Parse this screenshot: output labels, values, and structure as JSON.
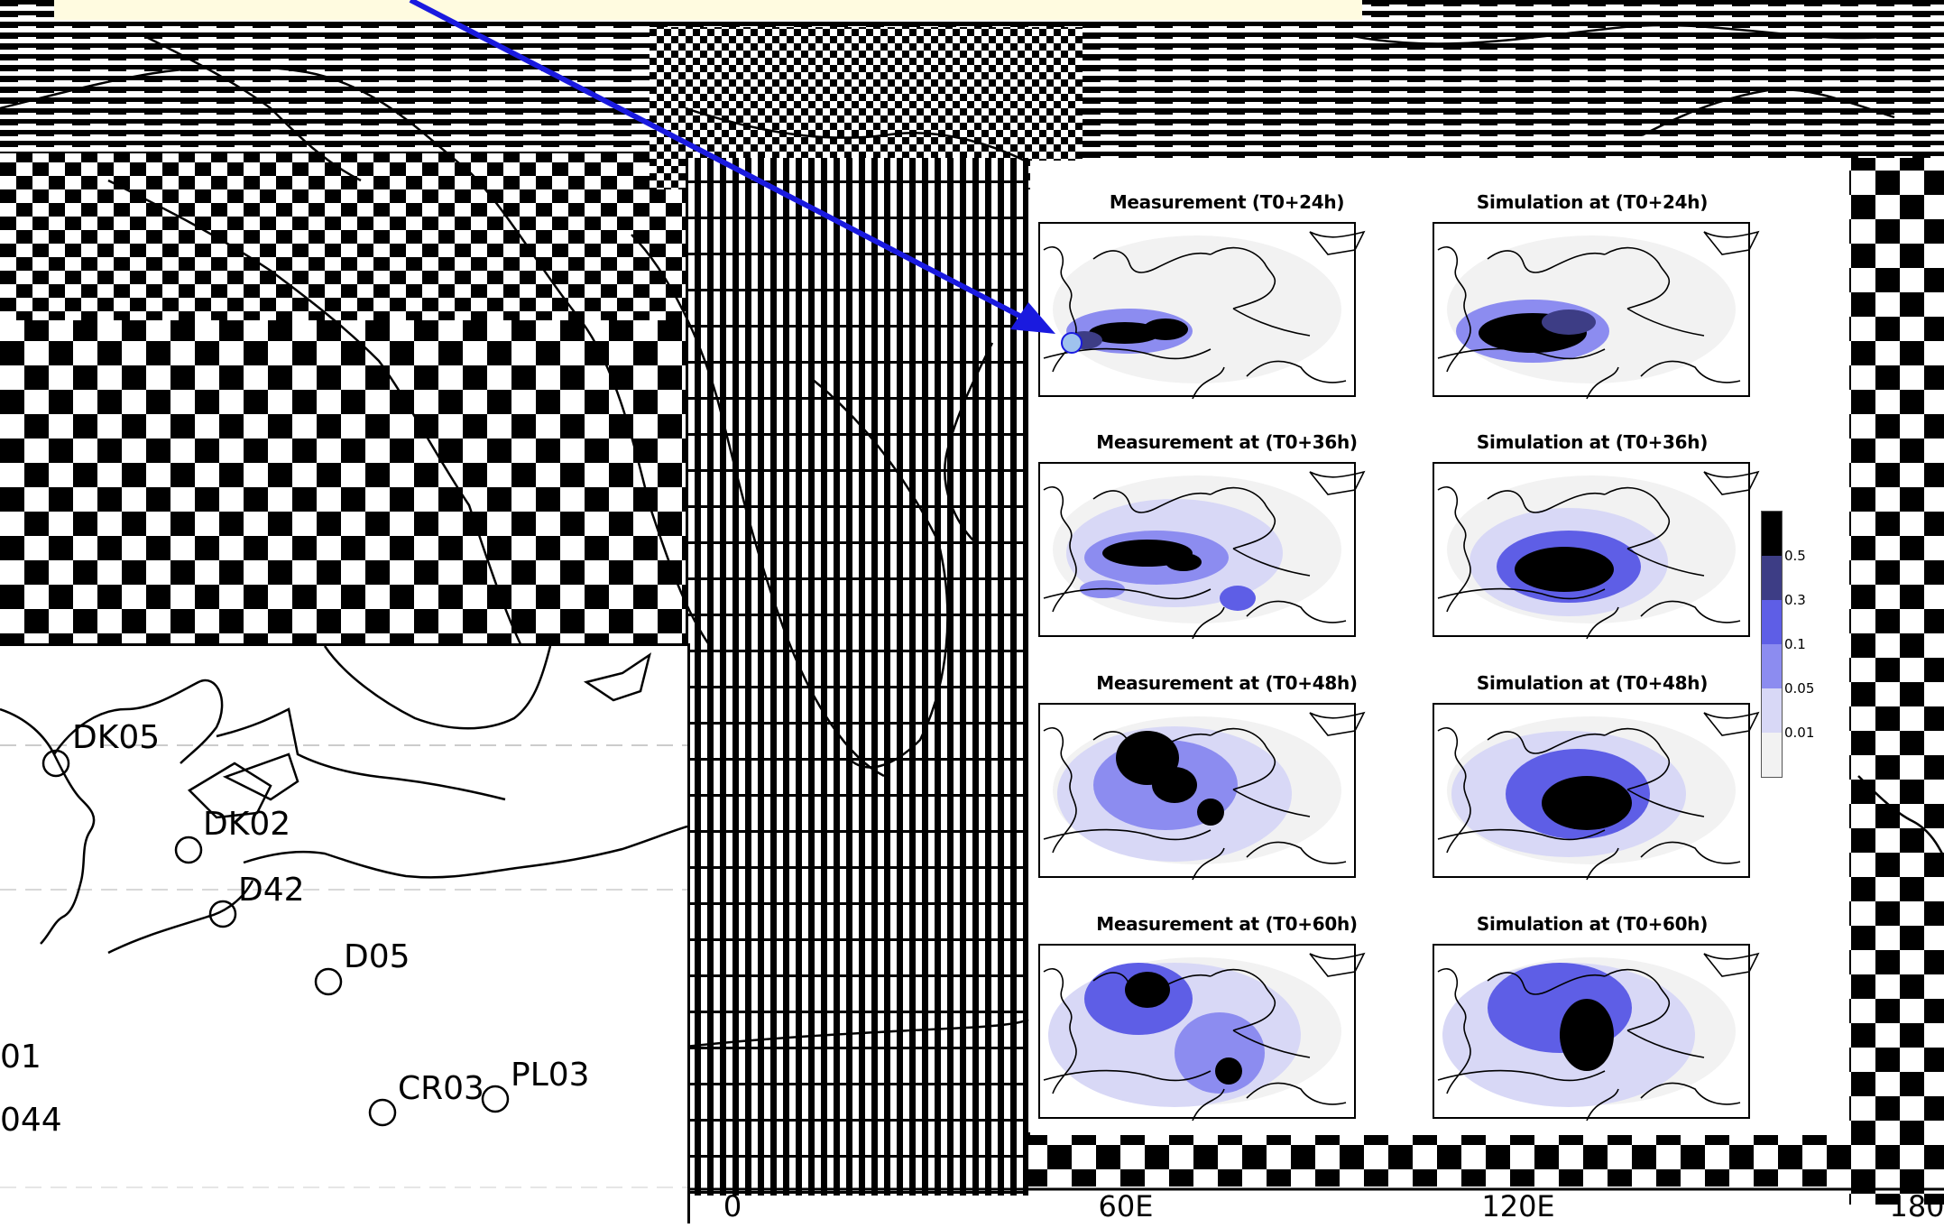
{
  "colors": {
    "arrow": "#1a1adf",
    "highlight_bar": "#fffbe0",
    "plume_levels": [
      "#f2f2f2",
      "#d8d8f6",
      "#8c8cf0",
      "#5e5ee6",
      "#3d3d85",
      "#000000"
    ]
  },
  "panels": [
    {
      "measurement_title": "Measurement (T0+24h)",
      "simulation_title": "Simulation at (T0+24h)"
    },
    {
      "measurement_title": "Measurement at  (T0+36h)",
      "simulation_title": "Simulation at (T0+36h)"
    },
    {
      "measurement_title": "Measurement at  (T0+48h)",
      "simulation_title": "Simulation at (T0+48h)"
    },
    {
      "measurement_title": "Measurement at  (T0+60h)",
      "simulation_title": "Simulation at (T0+60h)"
    }
  ],
  "legend": {
    "levels": [
      "0.5",
      "0.3",
      "0.1",
      "0.05",
      "0.01"
    ]
  },
  "stations": [
    {
      "label": "DK05"
    },
    {
      "label": "DK02"
    },
    {
      "label": "D42"
    },
    {
      "label": "D05"
    },
    {
      "label": "CR03"
    },
    {
      "label": "PL03"
    },
    {
      "label": "01"
    },
    {
      "label": "044"
    }
  ],
  "x_axis": {
    "ticks": [
      "0",
      "60E",
      "120E",
      "180"
    ]
  }
}
